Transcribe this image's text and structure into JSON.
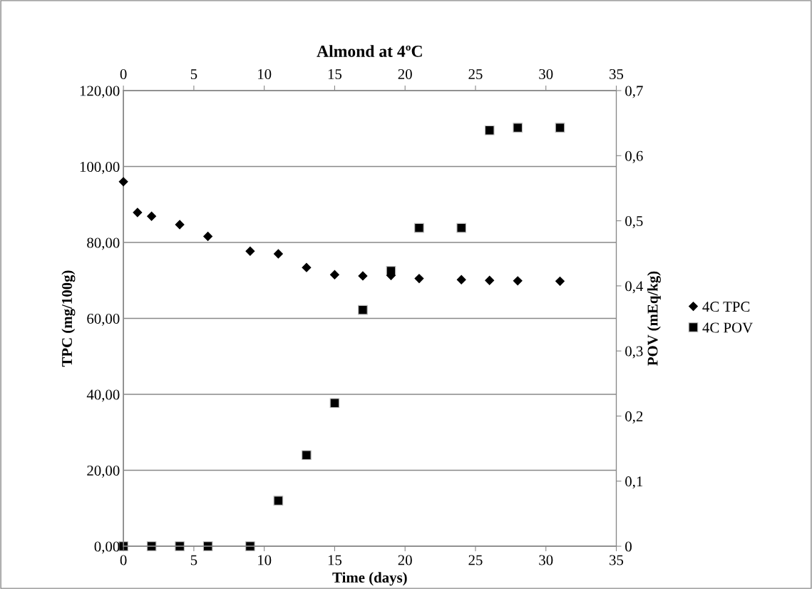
{
  "chart_data": {
    "type": "scatter",
    "title": "Almond at 4ºC",
    "xlabel": "Time (days)",
    "ylabel": "TPC (mg/100g)",
    "y2label": "POV (mEq/kg)",
    "series": [
      {
        "name": "4C TPC",
        "color": "#000000",
        "marker": "diamond",
        "x": [
          0,
          1,
          2,
          4,
          6,
          9,
          11,
          13,
          15,
          17,
          19,
          21,
          24,
          26,
          28,
          31
        ],
        "values": [
          96.0,
          87.9,
          86.9,
          84.7,
          81.6,
          77.7,
          77.0,
          73.4,
          71.5,
          71.2,
          71.3,
          70.5,
          70.2,
          70.0,
          69.9,
          69.8
        ]
      },
      {
        "name": "4C POV",
        "color": "#000000",
        "marker": "square",
        "axis": "y2",
        "x": [
          0,
          2,
          4,
          6,
          9,
          11,
          13,
          15,
          17,
          19,
          21,
          24,
          26,
          28,
          31
        ],
        "values": [
          0,
          0,
          0,
          0,
          0,
          0.07,
          0.14,
          0.22,
          0.363,
          0.423,
          0.489,
          0.489,
          0.639,
          0.643,
          0.643
        ]
      }
    ],
    "xlim": [
      0,
      35
    ],
    "xticks": [
      0,
      5,
      10,
      15,
      20,
      25,
      30,
      35
    ],
    "x2lim": [
      0,
      35
    ],
    "x2ticks": [
      0,
      5,
      10,
      15,
      20,
      25,
      30,
      35
    ],
    "ylim": [
      0,
      120
    ],
    "yticks": [
      {
        "value": 0,
        "label": "0,00"
      },
      {
        "value": 20,
        "label": "20,00"
      },
      {
        "value": 40,
        "label": "40,00"
      },
      {
        "value": 60,
        "label": "60,00"
      },
      {
        "value": 80,
        "label": "80,00"
      },
      {
        "value": 100,
        "label": "100,00"
      },
      {
        "value": 120,
        "label": "120,00"
      }
    ],
    "y2lim": [
      0,
      0.7
    ],
    "y2ticks": [
      0,
      {
        "value": 0.1,
        "label": "0,1"
      },
      {
        "value": 0.2,
        "label": "0,2"
      },
      {
        "value": 0.3,
        "label": "0,3"
      },
      {
        "value": 0.4,
        "label": "0,4"
      },
      {
        "value": 0.5,
        "label": "0,5"
      },
      {
        "value": 0.6,
        "label": "0,6"
      },
      {
        "value": 0.7,
        "label": "0,7"
      }
    ],
    "grid": "y",
    "legend": "right"
  }
}
